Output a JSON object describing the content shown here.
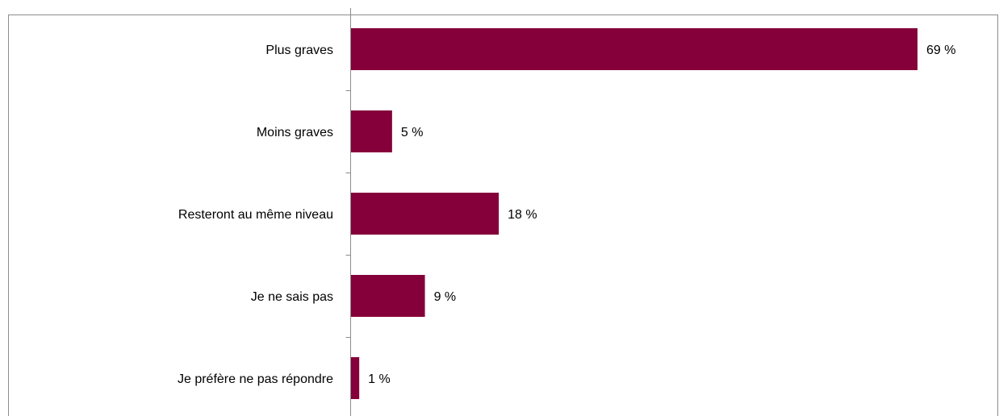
{
  "chart_data": {
    "type": "bar",
    "orientation": "horizontal",
    "categories": [
      "Plus graves",
      "Moins graves",
      "Resteront au même niveau",
      "Je ne sais pas",
      "Je préfère ne pas répondre"
    ],
    "values": [
      69,
      5,
      18,
      9,
      1
    ],
    "value_labels": [
      "69 %",
      "5 %",
      "18 %",
      "9 %",
      "1 %"
    ],
    "xlim": [
      0,
      75
    ],
    "unit": "%",
    "grid": false,
    "legend": "none",
    "bar_color": "#85003A"
  }
}
